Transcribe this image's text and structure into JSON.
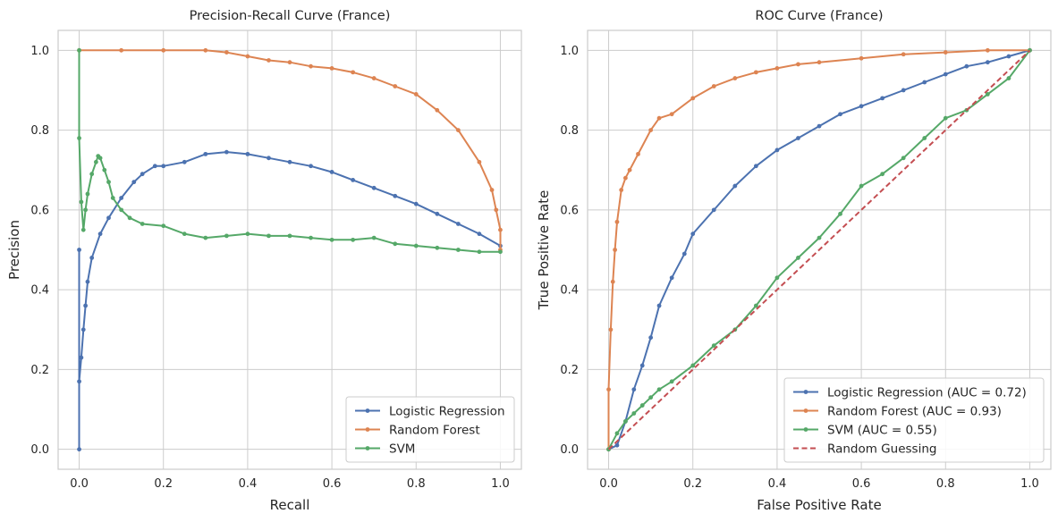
{
  "chart_data": [
    {
      "type": "line",
      "title": "Precision-Recall Curve (France)",
      "xlabel": "Recall",
      "ylabel": "Precision",
      "xlim": [
        -0.05,
        1.05
      ],
      "ylim": [
        -0.05,
        1.05
      ],
      "xticks": [
        "0.0",
        "0.2",
        "0.4",
        "0.6",
        "0.8",
        "1.0"
      ],
      "yticks": [
        "0.0",
        "0.2",
        "0.4",
        "0.6",
        "0.8",
        "1.0"
      ],
      "grid": true,
      "legend_position": "lower-right",
      "series": [
        {
          "name": "Logistic Regression",
          "color": "#4c72b0",
          "style": "solid-dots",
          "x": [
            0.0,
            0.0,
            0.0,
            0.005,
            0.01,
            0.015,
            0.02,
            0.03,
            0.05,
            0.07,
            0.1,
            0.13,
            0.15,
            0.18,
            0.2,
            0.25,
            0.3,
            0.35,
            0.4,
            0.45,
            0.5,
            0.55,
            0.6,
            0.65,
            0.7,
            0.75,
            0.8,
            0.85,
            0.9,
            0.95,
            1.0
          ],
          "y": [
            0.0,
            0.5,
            0.17,
            0.23,
            0.3,
            0.36,
            0.42,
            0.48,
            0.54,
            0.58,
            0.63,
            0.67,
            0.69,
            0.71,
            0.71,
            0.72,
            0.74,
            0.745,
            0.74,
            0.73,
            0.72,
            0.71,
            0.695,
            0.675,
            0.655,
            0.635,
            0.615,
            0.59,
            0.565,
            0.54,
            0.51
          ]
        },
        {
          "name": "Random Forest",
          "color": "#dd8452",
          "style": "solid-dots",
          "x": [
            0.0,
            0.1,
            0.2,
            0.3,
            0.35,
            0.4,
            0.45,
            0.5,
            0.55,
            0.6,
            0.65,
            0.7,
            0.75,
            0.8,
            0.85,
            0.9,
            0.95,
            0.98,
            0.99,
            1.0,
            1.0
          ],
          "y": [
            1.0,
            1.0,
            1.0,
            1.0,
            0.995,
            0.985,
            0.975,
            0.97,
            0.96,
            0.955,
            0.945,
            0.93,
            0.91,
            0.89,
            0.85,
            0.8,
            0.72,
            0.65,
            0.6,
            0.55,
            0.5
          ]
        },
        {
          "name": "SVM",
          "color": "#55a868",
          "style": "solid-dots",
          "x": [
            0.0,
            0.0,
            0.005,
            0.01,
            0.015,
            0.02,
            0.03,
            0.04,
            0.045,
            0.05,
            0.06,
            0.07,
            0.08,
            0.1,
            0.12,
            0.15,
            0.2,
            0.25,
            0.3,
            0.35,
            0.4,
            0.45,
            0.5,
            0.55,
            0.6,
            0.65,
            0.7,
            0.75,
            0.8,
            0.85,
            0.9,
            0.95,
            1.0
          ],
          "y": [
            1.0,
            0.78,
            0.62,
            0.55,
            0.6,
            0.64,
            0.69,
            0.72,
            0.735,
            0.73,
            0.7,
            0.67,
            0.63,
            0.6,
            0.58,
            0.565,
            0.56,
            0.54,
            0.53,
            0.535,
            0.54,
            0.535,
            0.535,
            0.53,
            0.525,
            0.525,
            0.53,
            0.515,
            0.51,
            0.505,
            0.5,
            0.495,
            0.495
          ]
        }
      ]
    },
    {
      "type": "line",
      "title": "ROC Curve (France)",
      "xlabel": "False Positive Rate",
      "ylabel": "True Positive Rate",
      "xlim": [
        -0.05,
        1.05
      ],
      "ylim": [
        -0.05,
        1.05
      ],
      "xticks": [
        "0.0",
        "0.2",
        "0.4",
        "0.6",
        "0.8",
        "1.0"
      ],
      "yticks": [
        "0.0",
        "0.2",
        "0.4",
        "0.6",
        "0.8",
        "1.0"
      ],
      "grid": true,
      "legend_position": "lower-right",
      "series": [
        {
          "name": "Logistic Regression (AUC = 0.72)",
          "color": "#4c72b0",
          "style": "solid-dots",
          "x": [
            0.0,
            0.02,
            0.04,
            0.06,
            0.08,
            0.1,
            0.12,
            0.15,
            0.18,
            0.2,
            0.25,
            0.3,
            0.35,
            0.4,
            0.45,
            0.5,
            0.55,
            0.6,
            0.65,
            0.7,
            0.75,
            0.8,
            0.85,
            0.9,
            0.95,
            1.0
          ],
          "y": [
            0.0,
            0.01,
            0.07,
            0.15,
            0.21,
            0.28,
            0.36,
            0.43,
            0.49,
            0.54,
            0.6,
            0.66,
            0.71,
            0.75,
            0.78,
            0.81,
            0.84,
            0.86,
            0.88,
            0.9,
            0.92,
            0.94,
            0.96,
            0.97,
            0.985,
            1.0
          ]
        },
        {
          "name": "Random Forest (AUC = 0.93)",
          "color": "#dd8452",
          "style": "solid-dots",
          "x": [
            0.0,
            0.0,
            0.005,
            0.01,
            0.015,
            0.02,
            0.03,
            0.04,
            0.05,
            0.07,
            0.1,
            0.12,
            0.15,
            0.2,
            0.25,
            0.3,
            0.35,
            0.4,
            0.45,
            0.5,
            0.6,
            0.7,
            0.8,
            0.9,
            1.0
          ],
          "y": [
            0.0,
            0.15,
            0.3,
            0.42,
            0.5,
            0.57,
            0.65,
            0.68,
            0.7,
            0.74,
            0.8,
            0.83,
            0.84,
            0.88,
            0.91,
            0.93,
            0.945,
            0.955,
            0.965,
            0.97,
            0.98,
            0.99,
            0.995,
            1.0,
            1.0
          ]
        },
        {
          "name": "SVM (AUC = 0.55)",
          "color": "#55a868",
          "style": "solid-dots",
          "x": [
            0.0,
            0.02,
            0.04,
            0.06,
            0.08,
            0.1,
            0.12,
            0.15,
            0.2,
            0.25,
            0.3,
            0.35,
            0.4,
            0.45,
            0.5,
            0.55,
            0.6,
            0.65,
            0.7,
            0.75,
            0.8,
            0.85,
            0.9,
            0.95,
            1.0
          ],
          "y": [
            0.0,
            0.04,
            0.07,
            0.09,
            0.11,
            0.13,
            0.15,
            0.17,
            0.21,
            0.26,
            0.3,
            0.36,
            0.43,
            0.48,
            0.53,
            0.59,
            0.66,
            0.69,
            0.73,
            0.78,
            0.83,
            0.85,
            0.89,
            0.93,
            1.0
          ]
        },
        {
          "name": "Random Guessing",
          "color": "#c44e52",
          "style": "dashed",
          "x": [
            0.0,
            1.0
          ],
          "y": [
            0.0,
            1.0
          ]
        }
      ]
    }
  ]
}
